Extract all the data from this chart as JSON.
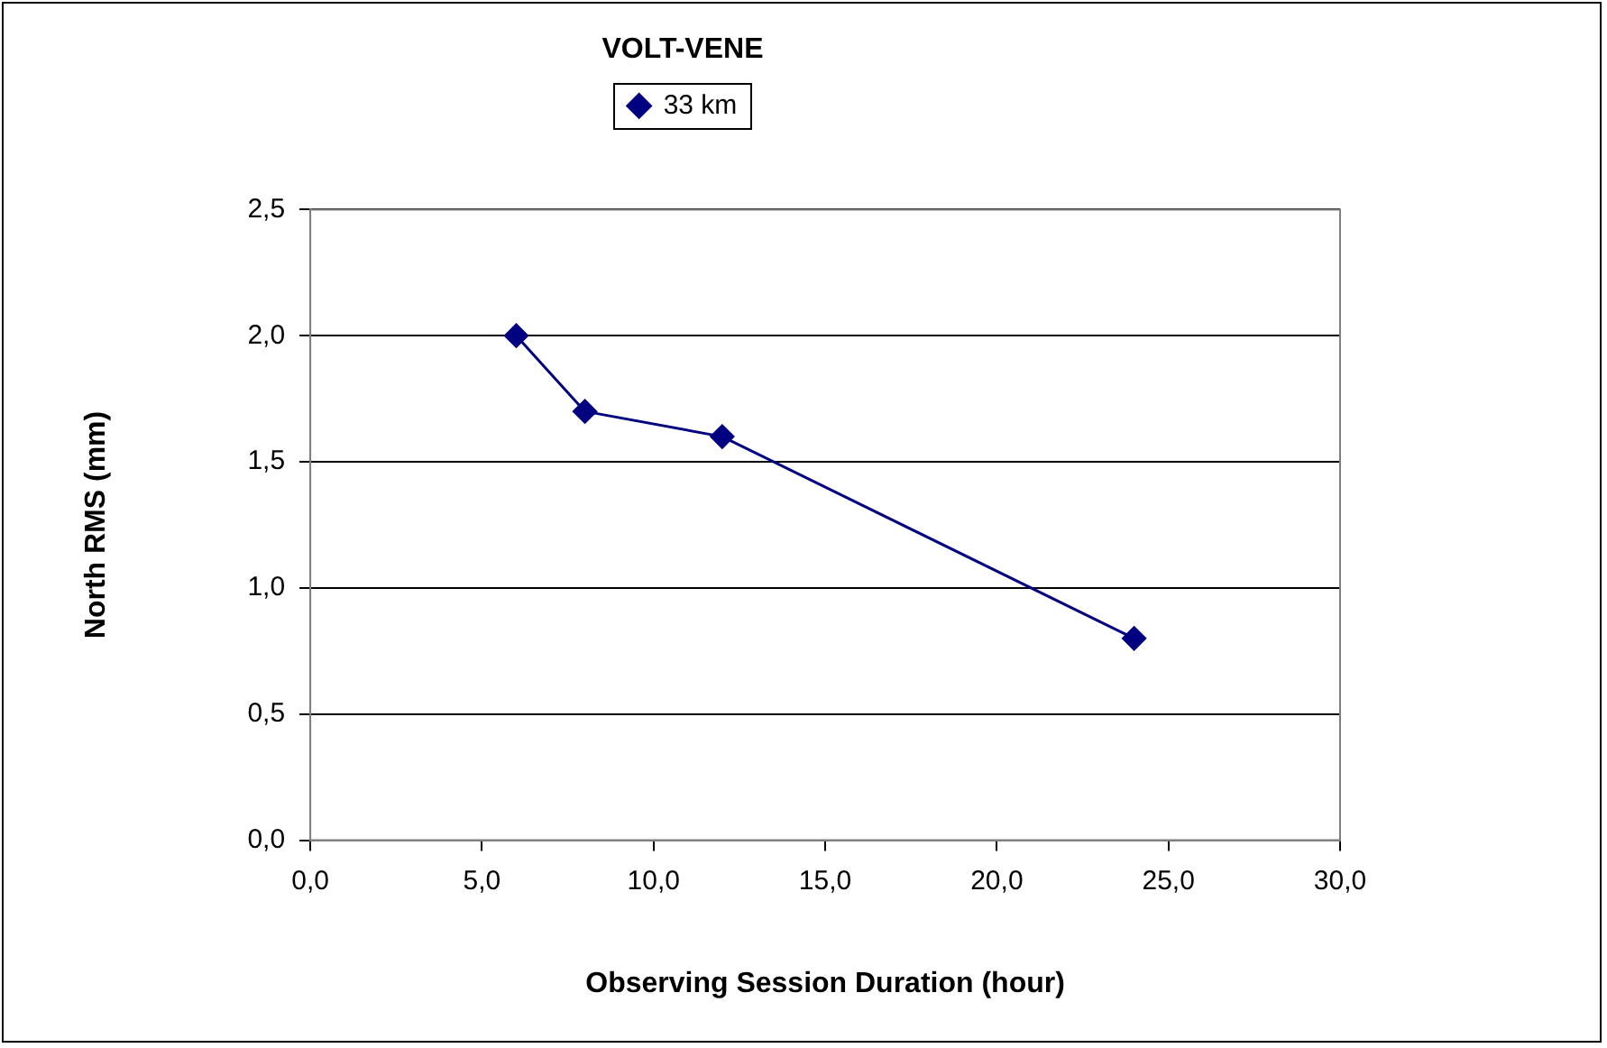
{
  "chart_data": {
    "type": "line",
    "title": "VOLT-VENE",
    "xlabel": "Observing Session Duration (hour)",
    "ylabel": "North RMS (mm)",
    "x": [
      6,
      8,
      12,
      24
    ],
    "series": [
      {
        "name": "33 km",
        "color": "#000080",
        "values": [
          2.0,
          1.7,
          1.6,
          0.8
        ]
      }
    ],
    "xlim": [
      0,
      30
    ],
    "xticks": [
      {
        "value": 0,
        "label": "0,0"
      },
      {
        "value": 5,
        "label": "5,0"
      },
      {
        "value": 10,
        "label": "10,0"
      },
      {
        "value": 15,
        "label": "15,0"
      },
      {
        "value": 20,
        "label": "20,0"
      },
      {
        "value": 25,
        "label": "25,0"
      },
      {
        "value": 30,
        "label": "30,0"
      }
    ],
    "ylim": [
      0,
      2.5
    ],
    "yticks": [
      {
        "value": 0,
        "label": "0,0"
      },
      {
        "value": 0.5,
        "label": "0,5"
      },
      {
        "value": 1,
        "label": "1,0"
      },
      {
        "value": 1.5,
        "label": "1,5"
      },
      {
        "value": 2,
        "label": "2,0"
      },
      {
        "value": 2.5,
        "label": "2,5"
      }
    ],
    "grid": "y",
    "legend": "top",
    "marker": "diamond",
    "line_style": "solid"
  }
}
